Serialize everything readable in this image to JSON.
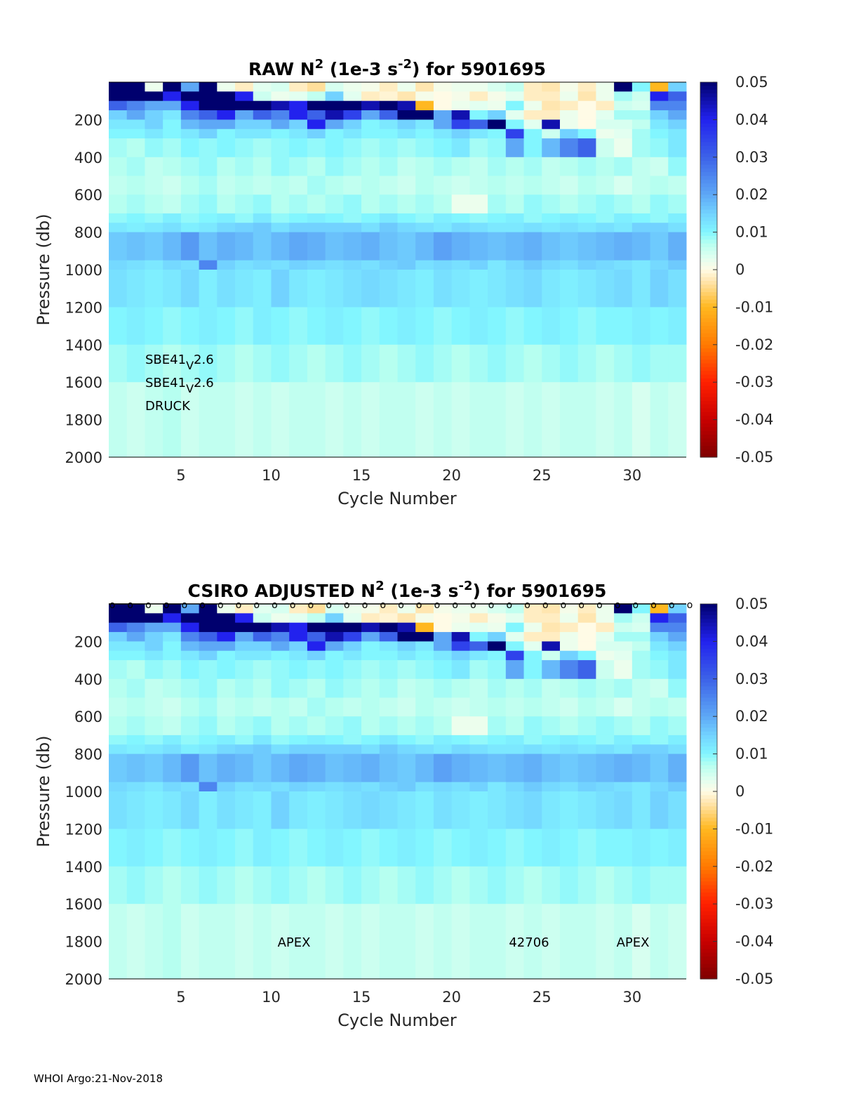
{
  "footer": "WHOI Argo:21-Nov-2018",
  "chart_data": {
    "type": "heatmap",
    "xlabel": "Cycle Number",
    "ylabel": "Pressure (db)",
    "xlim": [
      1,
      33
    ],
    "ylim": [
      0,
      2000
    ],
    "y_reversed": true,
    "xticks": [
      5,
      10,
      15,
      20,
      25,
      30
    ],
    "yticks": [
      200,
      400,
      600,
      800,
      1000,
      1200,
      1400,
      1600,
      1800,
      2000
    ],
    "colorbar": {
      "clim": [
        -0.05,
        0.05
      ],
      "ticks": [
        "0.05",
        "0.04",
        "0.03",
        "0.02",
        "0.01",
        "0",
        "-0.01",
        "-0.02",
        "-0.03",
        "-0.04",
        "-0.05"
      ],
      "colormap": [
        [
          -0.05,
          "#7f0000"
        ],
        [
          -0.04,
          "#c80000"
        ],
        [
          -0.03,
          "#ff2000"
        ],
        [
          -0.02,
          "#ff7a00"
        ],
        [
          -0.01,
          "#ffb820"
        ],
        [
          -0.003,
          "#ffe6b0"
        ],
        [
          0,
          "#fffbe6"
        ],
        [
          0.003,
          "#e2fff0"
        ],
        [
          0.007,
          "#b6fff0"
        ],
        [
          0.01,
          "#82f6ff"
        ],
        [
          0.015,
          "#72d2ff"
        ],
        [
          0.02,
          "#5ea8f6"
        ],
        [
          0.03,
          "#3c62e8"
        ],
        [
          0.04,
          "#2222ee"
        ],
        [
          0.05,
          "#00006e"
        ]
      ]
    },
    "x_edges": [
      1,
      2,
      3,
      4,
      5,
      6,
      7,
      8,
      9,
      10,
      11,
      12,
      13,
      14,
      15,
      16,
      17,
      18,
      19,
      20,
      21,
      22,
      23,
      24,
      25,
      26,
      27,
      28,
      29,
      30,
      31,
      32,
      33
    ],
    "y_edges": [
      0,
      50,
      100,
      150,
      200,
      250,
      300,
      400,
      500,
      600,
      700,
      750,
      800,
      950,
      1000,
      1200,
      1400,
      1600,
      2000
    ],
    "values": [
      [
        0.05,
        0.05,
        0.002,
        0.05,
        0.02,
        0.05,
        0.002,
        -0.002,
        0.003,
        0.004,
        -0.002,
        -0.004,
        0.004,
        0.002,
        0.001,
        -0.002,
        0.002,
        -0.003,
        0.001,
        0.002,
        0.002,
        0.004,
        0.006,
        -0.002,
        -0.003,
        0.001,
        -0.002,
        0.002,
        0.05,
        0.01,
        -0.01,
        0.015
      ],
      [
        0.05,
        0.05,
        0.05,
        0.04,
        0.05,
        0.05,
        0.05,
        0.04,
        0.005,
        0.002,
        0.003,
        0.006,
        0.015,
        0.003,
        -0.002,
        -0.001,
        -0.003,
        0.001,
        0.0,
        0.001,
        -0.002,
        0.001,
        0.003,
        -0.002,
        -0.002,
        0.002,
        -0.003,
        0.002,
        0.008,
        0.005,
        0.04,
        0.03
      ],
      [
        0.03,
        0.025,
        0.02,
        0.02,
        0.04,
        0.05,
        0.05,
        0.05,
        0.05,
        0.045,
        0.04,
        0.05,
        0.05,
        0.05,
        0.045,
        0.05,
        0.045,
        -0.01,
        0.0,
        0.002,
        0.003,
        0.002,
        0.01,
        0.002,
        -0.003,
        -0.002,
        0.0,
        -0.002,
        0.005,
        0.004,
        0.025,
        0.025
      ],
      [
        0.015,
        0.02,
        0.015,
        0.012,
        0.025,
        0.03,
        0.04,
        0.02,
        0.03,
        0.025,
        0.04,
        0.03,
        0.045,
        0.035,
        0.02,
        0.03,
        0.05,
        0.05,
        0.02,
        0.045,
        0.01,
        0.015,
        0.003,
        -0.002,
        -0.002,
        0.002,
        0.0,
        0.003,
        0.008,
        0.008,
        0.015,
        0.02
      ],
      [
        0.012,
        0.012,
        0.015,
        0.01,
        0.018,
        0.02,
        0.02,
        0.015,
        0.015,
        0.02,
        0.015,
        0.04,
        0.02,
        0.015,
        0.01,
        0.012,
        0.015,
        0.012,
        0.02,
        0.035,
        0.03,
        0.05,
        0.01,
        0.003,
        0.045,
        0.002,
        0.0,
        0.004,
        0.004,
        0.006,
        0.012,
        0.015
      ],
      [
        0.01,
        0.01,
        0.012,
        0.01,
        0.012,
        0.015,
        0.01,
        0.012,
        0.012,
        0.01,
        0.012,
        0.015,
        0.01,
        0.012,
        0.01,
        0.01,
        0.012,
        0.01,
        0.012,
        0.015,
        0.012,
        0.01,
        0.035,
        0.01,
        0.005,
        0.015,
        0.01,
        0.002,
        0.003,
        0.008,
        0.01,
        0.012
      ],
      [
        0.008,
        0.007,
        0.009,
        0.008,
        0.01,
        0.009,
        0.01,
        0.009,
        0.008,
        0.009,
        0.01,
        0.009,
        0.01,
        0.009,
        0.008,
        0.009,
        0.008,
        0.009,
        0.01,
        0.012,
        0.008,
        0.009,
        0.02,
        0.01,
        0.018,
        0.025,
        0.03,
        0.005,
        0.002,
        0.008,
        0.009,
        0.012
      ],
      [
        0.007,
        0.008,
        0.006,
        0.007,
        0.008,
        0.009,
        0.007,
        0.008,
        0.007,
        0.009,
        0.008,
        0.007,
        0.009,
        0.008,
        0.007,
        0.008,
        0.006,
        0.007,
        0.008,
        0.007,
        0.006,
        0.008,
        0.007,
        0.008,
        0.006,
        0.007,
        0.008,
        0.007,
        0.008,
        0.006,
        0.005,
        0.009
      ],
      [
        0.006,
        0.007,
        0.006,
        0.005,
        0.007,
        0.008,
        0.006,
        0.007,
        0.006,
        0.007,
        0.006,
        0.008,
        0.007,
        0.006,
        0.007,
        0.006,
        0.005,
        0.007,
        0.006,
        0.005,
        0.006,
        0.007,
        0.006,
        0.007,
        0.006,
        0.005,
        0.007,
        0.006,
        0.004,
        0.006,
        0.007,
        0.006
      ],
      [
        0.007,
        0.008,
        0.007,
        0.006,
        0.008,
        0.009,
        0.007,
        0.008,
        0.009,
        0.007,
        0.008,
        0.007,
        0.008,
        0.009,
        0.007,
        0.008,
        0.007,
        0.008,
        0.007,
        0.002,
        0.002,
        0.008,
        0.007,
        0.009,
        0.008,
        0.007,
        0.008,
        0.009,
        0.008,
        0.007,
        0.009,
        0.008
      ],
      [
        0.009,
        0.01,
        0.009,
        0.011,
        0.009,
        0.01,
        0.011,
        0.009,
        0.012,
        0.009,
        0.01,
        0.011,
        0.01,
        0.009,
        0.01,
        0.012,
        0.01,
        0.009,
        0.011,
        0.01,
        0.009,
        0.01,
        0.011,
        0.009,
        0.01,
        0.011,
        0.01,
        0.009,
        0.011,
        0.01,
        0.009,
        0.011
      ],
      [
        0.012,
        0.011,
        0.012,
        0.013,
        0.011,
        0.012,
        0.014,
        0.015,
        0.016,
        0.013,
        0.015,
        0.015,
        0.015,
        0.015,
        0.013,
        0.016,
        0.014,
        0.013,
        0.012,
        0.014,
        0.013,
        0.012,
        0.012,
        0.013,
        0.012,
        0.013,
        0.012,
        0.013,
        0.012,
        0.015,
        0.015,
        0.013
      ],
      [
        0.016,
        0.017,
        0.016,
        0.018,
        0.022,
        0.017,
        0.019,
        0.018,
        0.016,
        0.018,
        0.02,
        0.019,
        0.017,
        0.018,
        0.019,
        0.017,
        0.016,
        0.018,
        0.021,
        0.019,
        0.018,
        0.017,
        0.018,
        0.019,
        0.017,
        0.016,
        0.017,
        0.018,
        0.019,
        0.018,
        0.016,
        0.019
      ],
      [
        0.014,
        0.013,
        0.012,
        0.014,
        0.013,
        0.025,
        0.015,
        0.013,
        0.014,
        0.013,
        0.015,
        0.014,
        0.013,
        0.014,
        0.013,
        0.015,
        0.016,
        0.013,
        0.014,
        0.013,
        0.015,
        0.012,
        0.014,
        0.016,
        0.014,
        0.013,
        0.015,
        0.014,
        0.013,
        0.012,
        0.014,
        0.016
      ],
      [
        0.013,
        0.012,
        0.011,
        0.012,
        0.014,
        0.011,
        0.013,
        0.012,
        0.011,
        0.015,
        0.012,
        0.011,
        0.012,
        0.013,
        0.014,
        0.013,
        0.012,
        0.011,
        0.013,
        0.012,
        0.011,
        0.012,
        0.013,
        0.014,
        0.012,
        0.011,
        0.012,
        0.013,
        0.014,
        0.012,
        0.015,
        0.013
      ],
      [
        0.01,
        0.011,
        0.01,
        0.009,
        0.01,
        0.011,
        0.01,
        0.009,
        0.011,
        0.01,
        0.009,
        0.01,
        0.011,
        0.01,
        0.009,
        0.01,
        0.011,
        0.01,
        0.009,
        0.01,
        0.011,
        0.01,
        0.009,
        0.01,
        0.011,
        0.01,
        0.009,
        0.01,
        0.01,
        0.011,
        0.01,
        0.011
      ],
      [
        0.008,
        0.009,
        0.008,
        0.007,
        0.008,
        0.009,
        0.008,
        0.007,
        0.008,
        0.009,
        0.008,
        0.007,
        0.008,
        0.009,
        0.008,
        0.007,
        0.008,
        0.009,
        0.008,
        0.007,
        0.008,
        0.009,
        0.008,
        0.007,
        0.008,
        0.009,
        0.008,
        0.007,
        0.008,
        0.009,
        0.008,
        0.008
      ],
      [
        0.006,
        0.005,
        0.006,
        0.007,
        0.005,
        0.006,
        0.006,
        0.005,
        0.006,
        0.005,
        0.006,
        0.006,
        0.005,
        0.006,
        0.005,
        0.006,
        0.006,
        0.005,
        0.006,
        0.005,
        0.006,
        0.006,
        0.005,
        0.006,
        0.005,
        0.006,
        0.006,
        0.005,
        0.006,
        0.004,
        0.006,
        0.005
      ]
    ],
    "panels": [
      {
        "title_prefix": "RAW N",
        "title_sup1": "2",
        "title_mid": " (1e-3 s",
        "title_sup2": "-2",
        "title_suffix": ") for 5901695",
        "annotations": [
          {
            "text": "SBE41",
            "sub": "V",
            "after": "2.6"
          },
          {
            "text": "SBE41",
            "sub": "V",
            "after": "2.6"
          },
          {
            "text": "DRUCK"
          }
        ],
        "markers": false
      },
      {
        "title_prefix": "CSIRO  ADJUSTED N",
        "title_sup1": "2",
        "title_mid": " (1e-3 s",
        "title_sup2": "-2",
        "title_suffix": ") for 5901695",
        "annotations": [
          {
            "text": "APEX"
          },
          {
            "text": "42706"
          },
          {
            "text": "APEX"
          }
        ],
        "markers": true,
        "marker_symbol": "o",
        "marker_cycles": [
          1,
          2,
          3,
          4,
          5,
          6,
          7,
          8,
          9,
          10,
          11,
          12,
          13,
          14,
          15,
          16,
          17,
          18,
          19,
          20,
          21,
          22,
          23,
          24,
          25,
          26,
          27,
          28,
          29,
          30,
          31,
          32,
          33
        ]
      }
    ]
  }
}
